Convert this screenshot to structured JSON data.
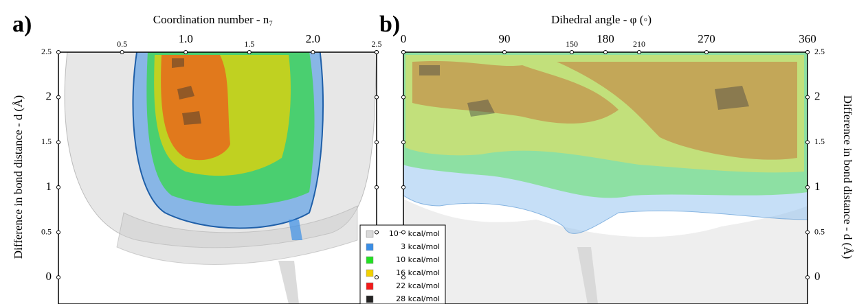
{
  "chart_data": [
    {
      "type": "isosurface",
      "panel_label": "a)",
      "xlabel": "Coordination number - n₇",
      "ylabel": "Difference in bond distance - d (Å)",
      "xlim": [
        0,
        2.5
      ],
      "xticks": [
        0.5,
        {
          "value": 1,
          "label": "1.0"
        },
        1.5,
        {
          "value": 2,
          "label": "2.0"
        },
        2.5
      ],
      "ylim": [
        -0.25,
        2.5
      ],
      "yticks": [
        0,
        0.5,
        1,
        1.5,
        2,
        2.5
      ],
      "series": [
        {
          "name": "10⁻³ kcal/mol",
          "color": "#d9d9d9"
        },
        {
          "name": "3 kcal/mol",
          "color": "#3a8ee6"
        },
        {
          "name": "10 kcal/mol",
          "color": "#22e022"
        },
        {
          "name": "16 kcal/mol",
          "color": "#f2d100"
        },
        {
          "name": "22 kcal/mol",
          "color": "#f21a1a"
        },
        {
          "name": "28 kcal/mol",
          "color": "#222222"
        }
      ]
    },
    {
      "type": "isosurface",
      "panel_label": "b)",
      "xlabel": "Dihedral angle - φ (◦)",
      "ylabel": "Difference in bond distance - d (Å)",
      "xlim": [
        0,
        360
      ],
      "xticks": [
        0,
        90,
        150,
        180,
        210,
        270,
        360
      ],
      "ylim": [
        -0.25,
        2.5
      ],
      "yticks": [
        0,
        0.5,
        1,
        1.5,
        2,
        2.5
      ]
    }
  ]
}
